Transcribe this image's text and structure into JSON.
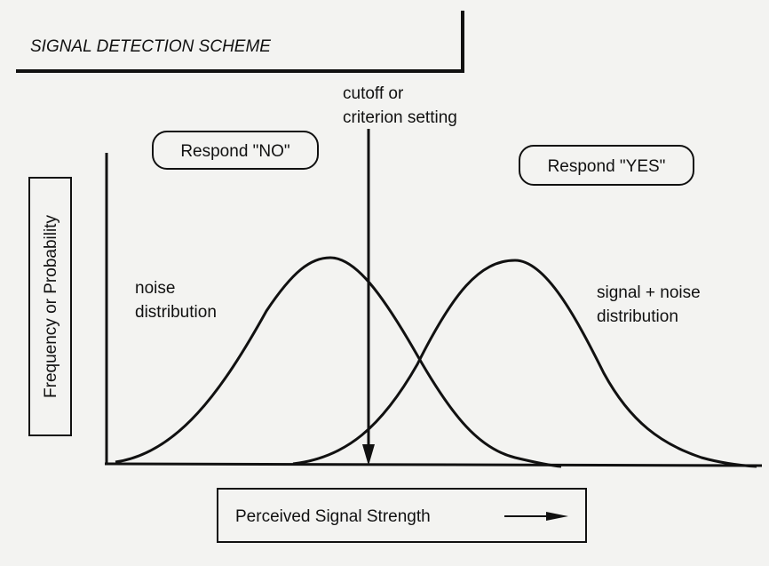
{
  "title": "SIGNAL DETECTION  SCHEME",
  "cutoff": {
    "lines": [
      "cutoff or",
      "criterion setting"
    ]
  },
  "regions": {
    "no": "Respond \"NO\"",
    "yes": "Respond \"YES\""
  },
  "y_axis_label": "Frequency or Probability",
  "x_axis_label": "Perceived Signal Strength",
  "curves": {
    "noise": [
      "noise",
      "distribution"
    ],
    "signal": [
      "signal + noise",
      "distribution"
    ]
  }
}
